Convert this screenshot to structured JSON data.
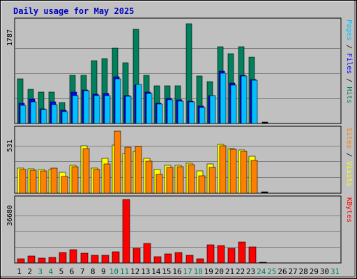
{
  "chart_data": {
    "type": "bar",
    "title": "Daily usage for May 2025",
    "days": [
      "1",
      "2",
      "3",
      "4",
      "5",
      "6",
      "7",
      "8",
      "9",
      "10",
      "11",
      "12",
      "13",
      "14",
      "15",
      "16",
      "17",
      "18",
      "19",
      "20",
      "21",
      "22",
      "23",
      "24",
      "25",
      "26",
      "27",
      "28",
      "29",
      "30",
      "31"
    ],
    "weekend_days": [
      3,
      4,
      10,
      11,
      17,
      18,
      24,
      25,
      31
    ],
    "colors": {
      "title": "#0000c0",
      "hits": "#00805c",
      "files": "#0000ff",
      "pages": "#00c0ff",
      "visits": "#ffff00",
      "sites": "#ff8000",
      "kbytes": "#ff0000",
      "panel_bg": "#c0c0c0",
      "plot_bg": "#c0c0c0",
      "weekday_label": "#000000",
      "weekend_label": "#00805c"
    },
    "panels": [
      {
        "id": "hits-files-pages",
        "max_label": "1787",
        "max": 1787,
        "legend": [
          {
            "text": "Pages",
            "color": "#00c0ff"
          },
          {
            "text": " / ",
            "color": "#000000"
          },
          {
            "text": "Files",
            "color": "#0000ff"
          },
          {
            "text": " / ",
            "color": "#000000"
          },
          {
            "text": "Hits",
            "color": "#00805c"
          }
        ],
        "series": [
          {
            "name": "Hits",
            "color": "#00805c",
            "values": [
              800,
              615,
              560,
              560,
              370,
              860,
              860,
              1120,
              1160,
              1350,
              1080,
              1680,
              860,
              675,
              675,
              675,
              1780,
              850,
              750,
              1370,
              1240,
              1370,
              1180,
              0,
              0,
              0,
              0,
              0,
              0,
              0,
              0
            ]
          },
          {
            "name": "Files",
            "color": "#0000ff",
            "values": [
              360,
              440,
              260,
              380,
              240,
              560,
              600,
              525,
              540,
              840,
              500,
              680,
              560,
              360,
              450,
              420,
              400,
              310,
              500,
              930,
              725,
              865,
              780,
              0,
              0,
              0,
              0,
              0,
              0,
              0,
              0
            ]
          },
          {
            "name": "Pages",
            "color": "#00c0ff",
            "values": [
              330,
              385,
              245,
              335,
              210,
              500,
              590,
              500,
              500,
              800,
              485,
              700,
              540,
              350,
              425,
              400,
              385,
              290,
              500,
              900,
              680,
              850,
              775,
              20,
              0,
              0,
              0,
              0,
              0,
              0,
              0
            ]
          }
        ]
      },
      {
        "id": "visits-sites",
        "max_label": "531",
        "max": 531,
        "legend": [
          {
            "text": "Sites",
            "color": "#ff8000"
          },
          {
            "text": " / ",
            "color": "#000000"
          },
          {
            "text": "Visits",
            "color": "#ffff00"
          }
        ],
        "series": [
          {
            "name": "Visits",
            "color": "#ffff00",
            "values": [
              210,
              205,
              200,
              200,
              175,
              235,
              395,
              210,
              290,
              400,
              330,
              350,
              290,
              200,
              230,
              235,
              250,
              185,
              245,
              405,
              375,
              360,
              310,
              0,
              0,
              0,
              0,
              0,
              0,
              0,
              0
            ]
          },
          {
            "name": "Sites",
            "color": "#ff8000",
            "values": [
              200,
              195,
              185,
              210,
              140,
              220,
              375,
              200,
              245,
              521,
              385,
              390,
              270,
              155,
              215,
              220,
              240,
              145,
              215,
              395,
              365,
              350,
              275,
              10,
              0,
              0,
              0,
              0,
              0,
              0,
              0
            ]
          }
        ]
      },
      {
        "id": "kbytes",
        "max_label": "36680",
        "max": 36680,
        "legend": [
          {
            "text": "KBytes",
            "color": "#ff0000"
          }
        ],
        "series": [
          {
            "name": "KBytes",
            "color": "#ff0000",
            "values": [
              2500,
              3900,
              2700,
              3100,
              6100,
              7600,
              5800,
              4300,
              4600,
              6500,
              36600,
              8300,
              11200,
              3500,
              5400,
              5900,
              4600,
              2500,
              10600,
              10100,
              8400,
              12000,
              9100,
              500,
              0,
              0,
              0,
              0,
              0,
              0,
              0
            ]
          }
        ]
      }
    ]
  }
}
